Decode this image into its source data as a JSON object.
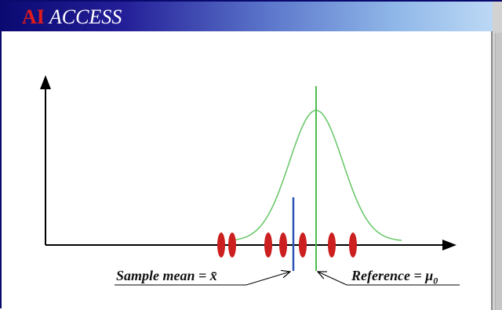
{
  "header": {
    "brand_ai": "AI",
    "brand_access": "ACCESS"
  },
  "colors": {
    "title_gradient_start": "#0b0a72",
    "title_gradient_end": "#bcd8f5",
    "brand_ai": "#e01b1b",
    "curve": "#6cc96c",
    "reference_line": "#4dbd4d",
    "sample_mean_line": "#2a55b5",
    "observation": "#cc1f1f",
    "axis": "#000000"
  },
  "labels": {
    "sample_mean_text": "Sample mean = ",
    "sample_mean_symbol": "x̄",
    "reference_text": "Reference = ",
    "reference_symbol": "μ",
    "reference_subscript": "0"
  },
  "chart_data": {
    "type": "scatter",
    "title": "",
    "xlabel": "",
    "ylabel": "",
    "observations_count": 7,
    "elements": [
      "observations",
      "sample-mean-line",
      "reference-line",
      "normal-curve"
    ]
  }
}
